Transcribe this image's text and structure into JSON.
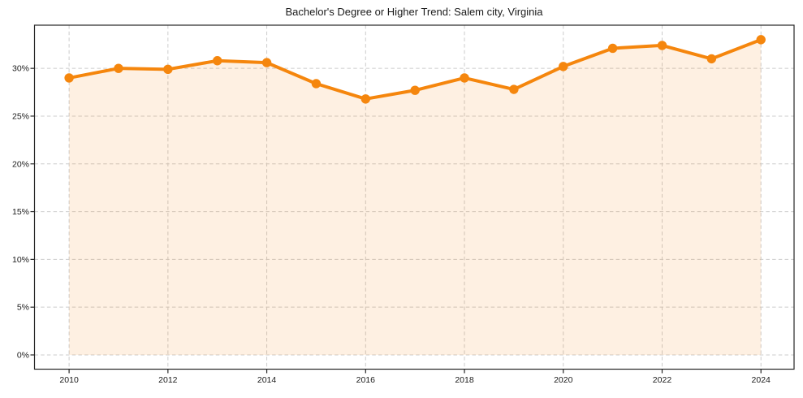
{
  "page": {
    "background_color": "#ffffff"
  },
  "chart_data": {
    "type": "line",
    "title": "Bachelor's Degree or Higher Trend: Salem city, Virginia",
    "series_name": "Bachelor's Degree or Higher",
    "unit": "%",
    "x": [
      2010,
      2011,
      2012,
      2013,
      2014,
      2015,
      2016,
      2017,
      2018,
      2019,
      2020,
      2021,
      2022,
      2023,
      2024
    ],
    "values": [
      29.0,
      30.0,
      29.9,
      30.8,
      30.6,
      28.4,
      26.8,
      27.7,
      29.0,
      27.8,
      30.2,
      32.1,
      32.4,
      31.0,
      33.0
    ],
    "x_ticks": [
      2010,
      2012,
      2014,
      2016,
      2018,
      2020,
      2022,
      2024
    ],
    "x_tick_labels": [
      "2010",
      "2012",
      "2014",
      "2016",
      "2018",
      "2020",
      "2022",
      "2024"
    ],
    "y_ticks": [
      0,
      5,
      10,
      15,
      20,
      25,
      30
    ],
    "y_tick_labels": [
      "0%",
      "5%",
      "10%",
      "15%",
      "20%",
      "25%",
      "30%"
    ],
    "xlim": [
      2009.3,
      2024.67
    ],
    "ylim": [
      -1.49,
      34.52
    ],
    "fill_baseline": 0,
    "grid": true,
    "legend_position": "none",
    "marker": "circle",
    "colors": {
      "line": "#F5860D",
      "marker": "#F5860D",
      "area_fill": "rgba(245, 130, 13, 0.12)",
      "gridline": "#cccccc",
      "axis_border": "#262626",
      "tick": "#262626",
      "text": "#1a1a1a",
      "title_text": "#1a1a1a"
    }
  }
}
